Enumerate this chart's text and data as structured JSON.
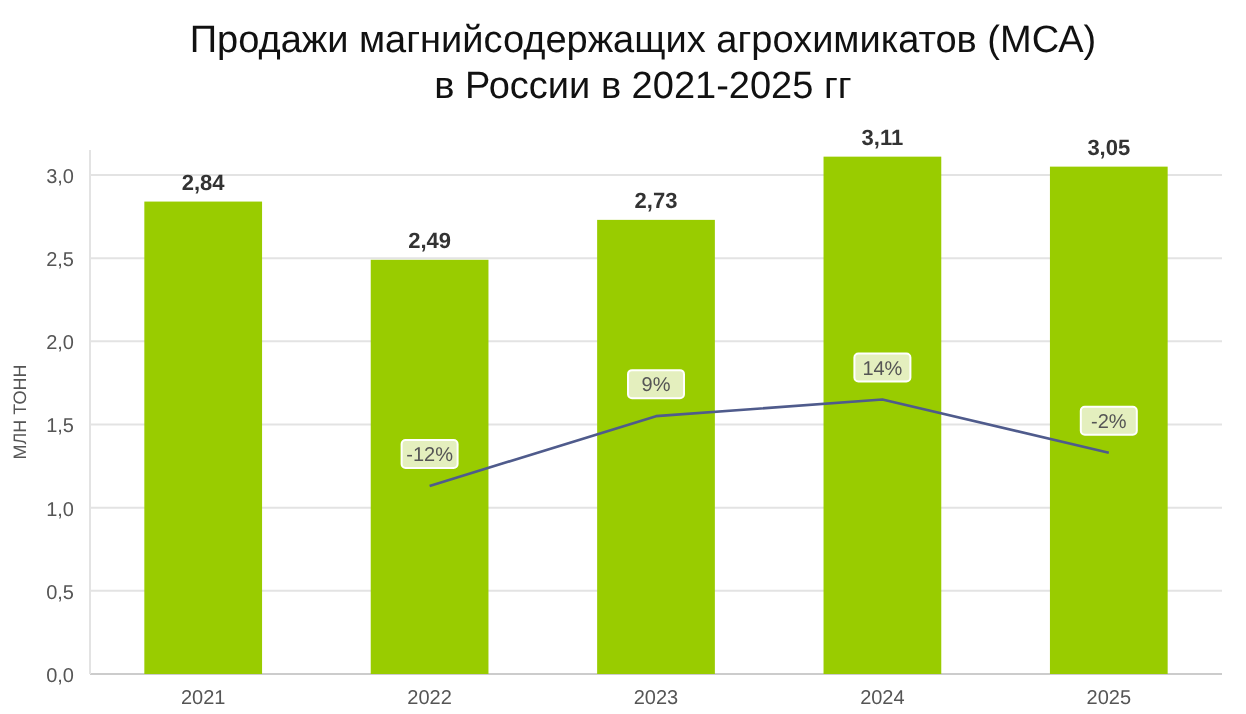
{
  "chart_data": {
    "type": "bar",
    "title": "Продажи магнийсодержащих агрохимикатов (МСА)\nв России в 2021-2025 гг",
    "ylabel": "МЛН ТОНН",
    "categories": [
      "2021",
      "2022",
      "2023",
      "2024",
      "2025"
    ],
    "series": [
      {
        "color": "#99cc00",
        "values": [
          2.84,
          2.49,
          2.73,
          3.11,
          3.05
        ],
        "value_labels": [
          "2,84",
          "2,49",
          "2,73",
          "3,11",
          "3,05"
        ]
      },
      {
        "type": "line",
        "axis": "y2",
        "color": "#4f5b8c",
        "values": [
          null,
          -12,
          9,
          14,
          -2
        ],
        "value_labels": [
          null,
          "-12%",
          "9%",
          "14%",
          "-2%"
        ]
      }
    ],
    "ylim": [
      0,
      3.15
    ],
    "yticks": [
      {
        "value": 0,
        "label": "0,0"
      },
      {
        "value": 0.5,
        "label": "0,5"
      },
      {
        "value": 1,
        "label": "1,0"
      },
      {
        "value": 1.5,
        "label": "1,5"
      },
      {
        "value": 2,
        "label": "2,0"
      },
      {
        "value": 2.5,
        "label": "2,5"
      },
      {
        "value": 3,
        "label": "3,0"
      }
    ],
    "y2lim": [
      -68.5,
      89
    ],
    "tick_labels": "xy",
    "grid": "y"
  }
}
